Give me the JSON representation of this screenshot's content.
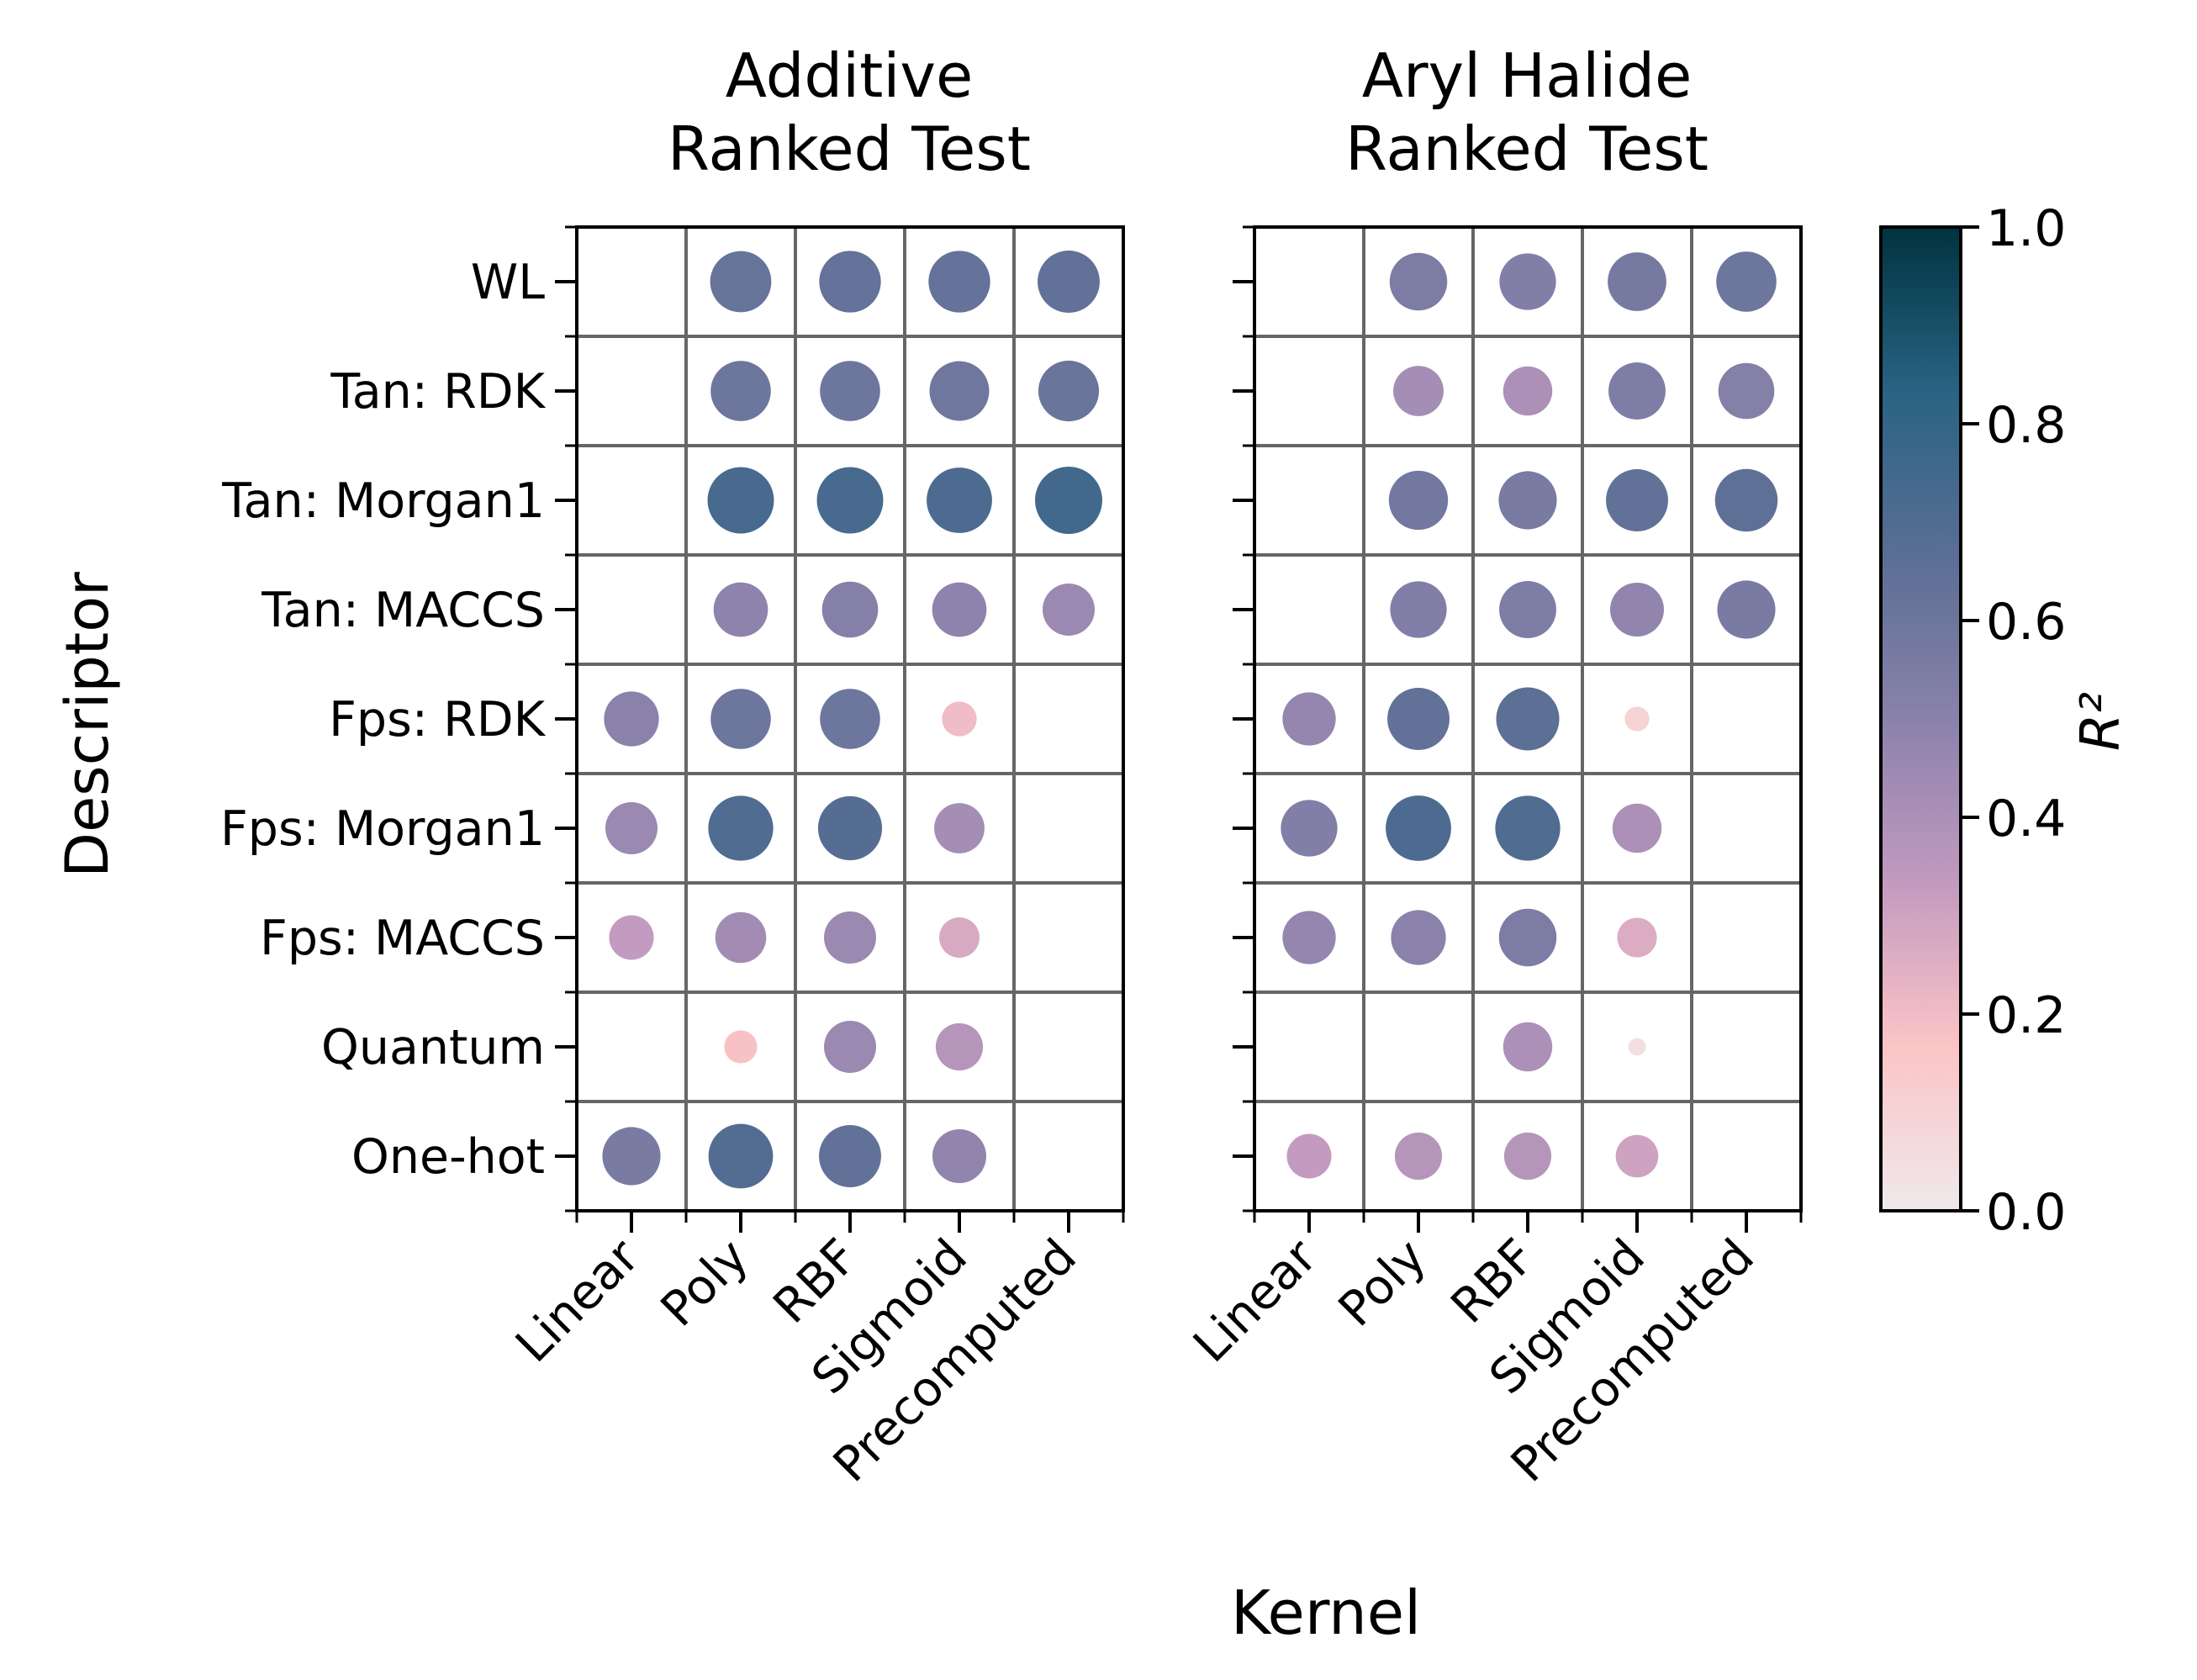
{
  "chart_data": {
    "type": "heatmap",
    "encoding": "circle size and color both map R^2",
    "rows": [
      "WL",
      "Tan: RDK",
      "Tan: Morgan1",
      "Tan: MACCS",
      "Fps: RDK",
      "Fps: Morgan1",
      "Fps: MACCS",
      "Quantum",
      "One-hot"
    ],
    "columns": [
      "Linear",
      "Poly",
      "RBF",
      "Sigmoid",
      "Precomputed"
    ],
    "xlabel": "Kernel",
    "ylabel": "Descriptor",
    "panels": [
      {
        "title_line1": "Additive",
        "title_line2": "Ranked Test",
        "values": [
          [
            null,
            0.62,
            0.63,
            0.63,
            0.64
          ],
          [
            null,
            0.6,
            0.6,
            0.59,
            0.61
          ],
          [
            null,
            0.73,
            0.73,
            0.71,
            0.75
          ],
          [
            null,
            0.49,
            0.52,
            0.49,
            0.45
          ],
          [
            0.5,
            0.6,
            0.6,
            0.2,
            null
          ],
          [
            0.45,
            0.7,
            0.68,
            0.42,
            null
          ],
          [
            0.33,
            0.43,
            0.45,
            0.27,
            null
          ],
          [
            null,
            0.18,
            0.45,
            0.37,
            null
          ],
          [
            0.56,
            0.69,
            0.64,
            0.48,
            null
          ]
        ]
      },
      {
        "title_line1": "Aryl Halide",
        "title_line2": "Ranked Test",
        "values": [
          [
            null,
            0.55,
            0.53,
            0.57,
            0.6
          ],
          [
            null,
            0.42,
            0.4,
            0.54,
            0.52
          ],
          [
            null,
            0.58,
            0.56,
            0.64,
            0.65
          ],
          [
            null,
            0.53,
            0.54,
            0.48,
            0.56
          ],
          [
            0.47,
            0.64,
            0.66,
            0.1,
            null
          ],
          [
            0.53,
            0.71,
            0.7,
            0.4,
            null
          ],
          [
            0.47,
            0.5,
            0.55,
            0.26,
            null
          ],
          [
            null,
            null,
            0.4,
            0.05,
            null
          ],
          [
            0.33,
            0.37,
            0.37,
            0.3,
            null
          ]
        ]
      }
    ],
    "colorbar": {
      "label": "R²",
      "range": [
        0.0,
        1.0
      ],
      "ticks": [
        "0.0",
        "0.2",
        "0.4",
        "0.6",
        "0.8",
        "1.0"
      ],
      "colormap": [
        "#efe9eb",
        "#fbc4c6",
        "#c39ac0",
        "#8a82ab",
        "#5a6e94",
        "#296383",
        "#003340"
      ]
    }
  }
}
